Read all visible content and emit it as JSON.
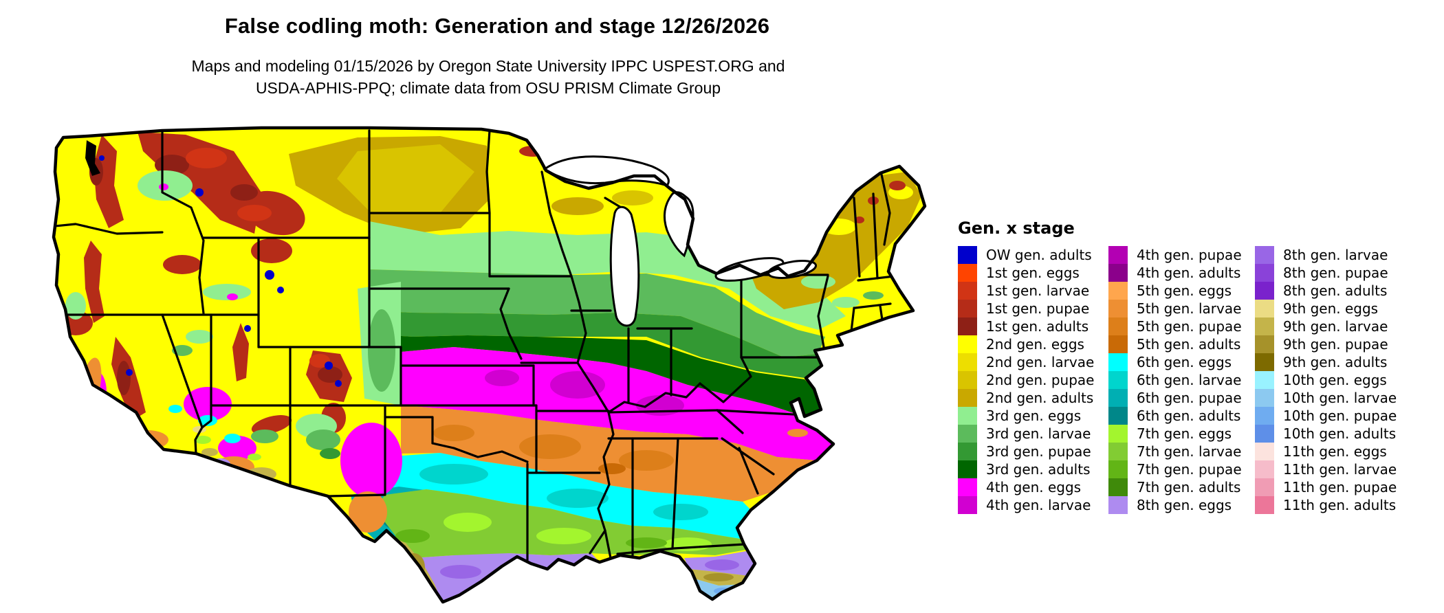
{
  "title": "False codling moth: Generation and stage 12/26/2026",
  "subtitle_line1": "Maps and modeling 01/15/2026 by Oregon State University IPPC USPEST.ORG and",
  "subtitle_line2": "USDA-APHIS-PPQ; climate data from OSU PRISM Climate Group",
  "legend": {
    "title": "Gen. x stage",
    "columns": [
      [
        {
          "label": "OW gen. adults",
          "color_key": "ow_adults"
        },
        {
          "label": "1st gen. eggs",
          "color_key": "g1_eggs"
        },
        {
          "label": "1st gen. larvae",
          "color_key": "g1_larvae"
        },
        {
          "label": "1st gen. pupae",
          "color_key": "g1_pupae"
        },
        {
          "label": "1st gen. adults",
          "color_key": "g1_adults"
        },
        {
          "label": "2nd gen. eggs",
          "color_key": "g2_eggs"
        },
        {
          "label": "2nd gen. larvae",
          "color_key": "g2_larvae"
        },
        {
          "label": "2nd gen. pupae",
          "color_key": "g2_pupae"
        },
        {
          "label": "2nd gen. adults",
          "color_key": "g2_adults"
        },
        {
          "label": "3rd gen. eggs",
          "color_key": "g3_eggs"
        },
        {
          "label": "3rd gen. larvae",
          "color_key": "g3_larvae"
        },
        {
          "label": "3rd gen. pupae",
          "color_key": "g3_pupae"
        },
        {
          "label": "3rd gen. adults",
          "color_key": "g3_adults"
        },
        {
          "label": "4th gen. eggs",
          "color_key": "g4_eggs"
        },
        {
          "label": "4th gen. larvae",
          "color_key": "g4_larvae"
        }
      ],
      [
        {
          "label": "4th gen. pupae",
          "color_key": "g4_pupae"
        },
        {
          "label": "4th gen. adults",
          "color_key": "g4_adults"
        },
        {
          "label": "5th gen. eggs",
          "color_key": "g5_eggs"
        },
        {
          "label": "5th gen. larvae",
          "color_key": "g5_larvae"
        },
        {
          "label": "5th gen. pupae",
          "color_key": "g5_pupae"
        },
        {
          "label": "5th gen. adults",
          "color_key": "g5_adults"
        },
        {
          "label": "6th gen. eggs",
          "color_key": "g6_eggs"
        },
        {
          "label": "6th gen. larvae",
          "color_key": "g6_larvae"
        },
        {
          "label": "6th gen. pupae",
          "color_key": "g6_pupae"
        },
        {
          "label": "6th gen. adults",
          "color_key": "g6_adults"
        },
        {
          "label": "7th gen. eggs",
          "color_key": "g7_eggs"
        },
        {
          "label": "7th gen. larvae",
          "color_key": "g7_larvae"
        },
        {
          "label": "7th gen. pupae",
          "color_key": "g7_pupae"
        },
        {
          "label": "7th gen. adults",
          "color_key": "g7_adults"
        },
        {
          "label": "8th gen. eggs",
          "color_key": "g8_eggs"
        }
      ],
      [
        {
          "label": "8th gen. larvae",
          "color_key": "g8_larvae"
        },
        {
          "label": "8th gen. pupae",
          "color_key": "g8_pupae"
        },
        {
          "label": "8th gen. adults",
          "color_key": "g8_adults"
        },
        {
          "label": "9th gen. eggs",
          "color_key": "g9_eggs"
        },
        {
          "label": "9th gen. larvae",
          "color_key": "g9_larvae"
        },
        {
          "label": "9th gen. pupae",
          "color_key": "g9_pupae"
        },
        {
          "label": "9th gen. adults",
          "color_key": "g9_adults"
        },
        {
          "label": "10th gen. eggs",
          "color_key": "g10_eggs"
        },
        {
          "label": "10th gen. larvae",
          "color_key": "g10_larvae"
        },
        {
          "label": "10th gen. pupae",
          "color_key": "g10_pupae"
        },
        {
          "label": "10th gen. adults",
          "color_key": "g10_adults"
        },
        {
          "label": "11th gen. eggs",
          "color_key": "g11_eggs"
        },
        {
          "label": "11th gen. larvae",
          "color_key": "g11_larvae"
        },
        {
          "label": "11th gen. pupae",
          "color_key": "g11_pupae"
        },
        {
          "label": "11th gen. adults",
          "color_key": "g11_adults"
        }
      ]
    ]
  },
  "palette": {
    "ow_adults": "#0000CC",
    "g1_eggs": "#FF4400",
    "g1_larvae": "#D13415",
    "g1_pupae": "#B52C18",
    "g1_adults": "#8E2016",
    "g2_eggs": "#FFFF00",
    "g2_larvae": "#EDDE00",
    "g2_pupae": "#D9C400",
    "g2_adults": "#C9A800",
    "g3_eggs": "#90EE90",
    "g3_larvae": "#5CBB5C",
    "g3_pupae": "#339933",
    "g3_adults": "#006600",
    "g4_eggs": "#FF00FF",
    "g4_larvae": "#D100D1",
    "g4_pupae": "#B300B3",
    "g4_adults": "#8B008B",
    "g5_eggs": "#FFA64D",
    "g5_larvae": "#EE8F33",
    "g5_pupae": "#DD7F1A",
    "g5_adults": "#C96A06",
    "g6_eggs": "#00FFFF",
    "g6_larvae": "#00D5CD",
    "g6_pupae": "#00AFB3",
    "g6_adults": "#008789",
    "g7_eggs": "#A3F52E",
    "g7_larvae": "#82CC33",
    "g7_pupae": "#62B516",
    "g7_adults": "#3F8A0A",
    "g8_eggs": "#AE8BF0",
    "g8_larvae": "#9966E6",
    "g8_pupae": "#8A42D9",
    "g8_adults": "#7A22CC",
    "g9_eggs": "#EBDC84",
    "g9_larvae": "#C4B44A",
    "g9_pupae": "#A6922A",
    "g9_adults": "#7D6A00",
    "g10_eggs": "#99F2FF",
    "g10_larvae": "#8CC9F0",
    "g10_pupae": "#6FACF0",
    "g10_adults": "#5E8FE8",
    "g11_eggs": "#FCE3DE",
    "g11_larvae": "#F6BCCA",
    "g11_pupae": "#F09CB4",
    "g11_adults": "#EC7699",
    "map_border": "#000000",
    "water": "#FFFFFF",
    "background": "#FFFFFF"
  }
}
